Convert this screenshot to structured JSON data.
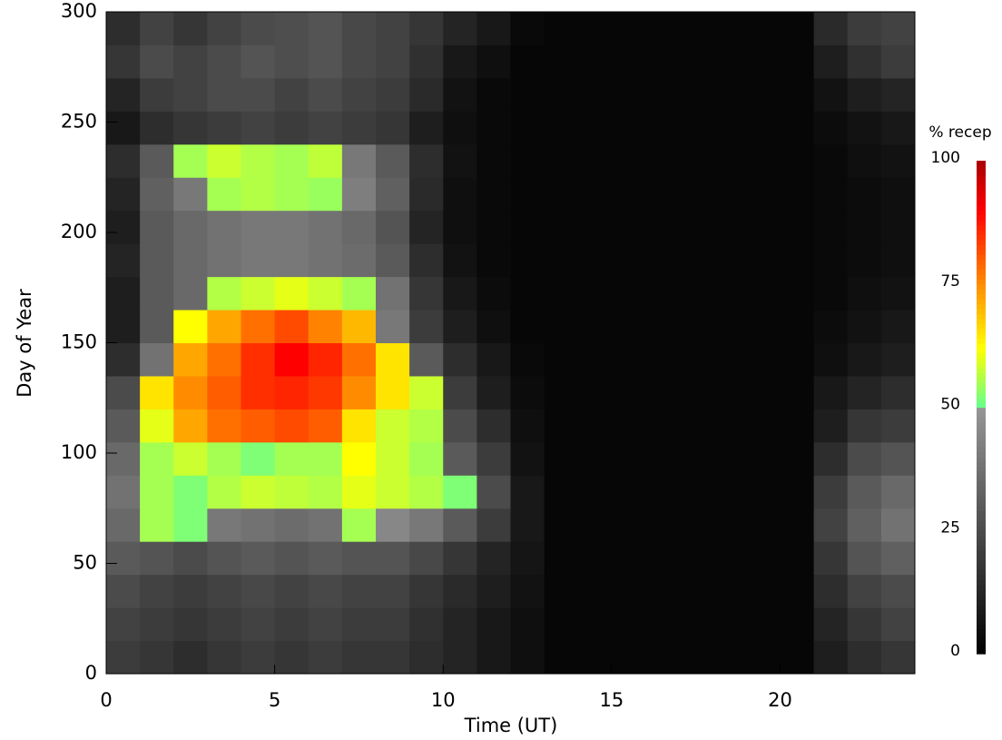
{
  "chart_data": {
    "type": "heatmap",
    "xlabel": "Time (UT)",
    "ylabel": "Day of Year",
    "colorbar_label": "% recep",
    "xlim": [
      0,
      24
    ],
    "xticks": [
      0,
      5,
      10,
      15,
      20
    ],
    "ylim": [
      0,
      300
    ],
    "yticks": [
      0,
      50,
      100,
      150,
      200,
      250,
      300
    ],
    "clim": [
      0,
      100
    ],
    "cticks": [
      0,
      25,
      50,
      75,
      100
    ],
    "xbins": [
      0,
      1,
      2,
      3,
      4,
      5,
      6,
      7,
      8,
      9,
      10,
      11,
      12,
      13,
      14,
      15,
      16,
      17,
      18,
      19,
      20,
      21,
      22,
      23,
      24
    ],
    "ybins": [
      0,
      15,
      30,
      45,
      60,
      75,
      90,
      105,
      120,
      135,
      150,
      165,
      180,
      195,
      210,
      225,
      240,
      255,
      270,
      285,
      300
    ],
    "z": [
      [
        20,
        18,
        15,
        18,
        20,
        18,
        20,
        18,
        18,
        15,
        12,
        8,
        5,
        2,
        2,
        2,
        2,
        2,
        2,
        2,
        2,
        10,
        15,
        18
      ],
      [
        22,
        20,
        18,
        20,
        22,
        20,
        22,
        20,
        20,
        16,
        12,
        8,
        5,
        2,
        2,
        2,
        2,
        2,
        2,
        2,
        2,
        12,
        18,
        22
      ],
      [
        25,
        22,
        20,
        22,
        24,
        22,
        24,
        22,
        22,
        18,
        14,
        10,
        6,
        2,
        2,
        2,
        2,
        2,
        2,
        2,
        2,
        15,
        22,
        25
      ],
      [
        30,
        28,
        25,
        28,
        30,
        28,
        30,
        28,
        28,
        24,
        18,
        12,
        7,
        2,
        2,
        2,
        2,
        2,
        2,
        2,
        2,
        18,
        28,
        32
      ],
      [
        35,
        55,
        52,
        40,
        38,
        36,
        38,
        55,
        45,
        40,
        30,
        20,
        8,
        2,
        2,
        2,
        2,
        2,
        2,
        2,
        2,
        22,
        32,
        38
      ],
      [
        38,
        55,
        52,
        56,
        58,
        57,
        56,
        60,
        58,
        56,
        52,
        25,
        8,
        2,
        2,
        2,
        2,
        2,
        2,
        2,
        2,
        20,
        30,
        35
      ],
      [
        35,
        55,
        58,
        55,
        52,
        55,
        55,
        62,
        58,
        55,
        30,
        20,
        6,
        2,
        2,
        2,
        2,
        2,
        2,
        2,
        2,
        15,
        25,
        28
      ],
      [
        30,
        60,
        72,
        78,
        80,
        82,
        80,
        65,
        58,
        56,
        25,
        15,
        5,
        2,
        2,
        2,
        2,
        2,
        2,
        2,
        2,
        10,
        18,
        20
      ],
      [
        25,
        65,
        75,
        80,
        85,
        86,
        84,
        75,
        65,
        58,
        20,
        10,
        4,
        2,
        2,
        2,
        2,
        2,
        2,
        2,
        2,
        8,
        12,
        15
      ],
      [
        15,
        38,
        72,
        78,
        85,
        90,
        86,
        78,
        65,
        30,
        15,
        8,
        3,
        2,
        2,
        2,
        2,
        2,
        2,
        2,
        2,
        5,
        8,
        10
      ],
      [
        10,
        30,
        62,
        72,
        78,
        82,
        76,
        70,
        40,
        20,
        10,
        5,
        2,
        2,
        2,
        2,
        2,
        2,
        2,
        2,
        2,
        4,
        6,
        8
      ],
      [
        10,
        30,
        35,
        56,
        58,
        60,
        58,
        55,
        38,
        18,
        8,
        4,
        2,
        2,
        2,
        2,
        2,
        2,
        2,
        2,
        2,
        3,
        5,
        6
      ],
      [
        12,
        30,
        35,
        38,
        40,
        40,
        38,
        36,
        30,
        15,
        6,
        3,
        2,
        2,
        2,
        2,
        2,
        2,
        2,
        2,
        2,
        3,
        4,
        5
      ],
      [
        10,
        30,
        35,
        38,
        40,
        40,
        38,
        35,
        28,
        12,
        5,
        3,
        2,
        2,
        2,
        2,
        2,
        2,
        2,
        2,
        2,
        3,
        4,
        5
      ],
      [
        12,
        32,
        40,
        55,
        56,
        55,
        54,
        42,
        32,
        14,
        5,
        3,
        2,
        2,
        2,
        2,
        2,
        2,
        2,
        2,
        2,
        3,
        4,
        5
      ],
      [
        15,
        30,
        55,
        58,
        56,
        55,
        57,
        40,
        30,
        15,
        6,
        3,
        2,
        2,
        2,
        2,
        2,
        2,
        2,
        2,
        2,
        3,
        5,
        6
      ],
      [
        8,
        15,
        18,
        20,
        22,
        20,
        22,
        20,
        18,
        10,
        5,
        3,
        2,
        2,
        2,
        2,
        2,
        2,
        2,
        2,
        2,
        4,
        6,
        8
      ],
      [
        12,
        20,
        22,
        25,
        25,
        22,
        25,
        22,
        20,
        14,
        6,
        3,
        2,
        2,
        2,
        2,
        2,
        2,
        2,
        2,
        2,
        6,
        10,
        12
      ],
      [
        18,
        25,
        22,
        25,
        28,
        26,
        28,
        24,
        22,
        16,
        8,
        5,
        2,
        2,
        2,
        2,
        2,
        2,
        2,
        2,
        2,
        10,
        16,
        20
      ],
      [
        15,
        22,
        18,
        22,
        25,
        26,
        28,
        24,
        22,
        18,
        12,
        8,
        3,
        2,
        2,
        2,
        2,
        2,
        2,
        2,
        2,
        14,
        20,
        22
      ]
    ]
  }
}
